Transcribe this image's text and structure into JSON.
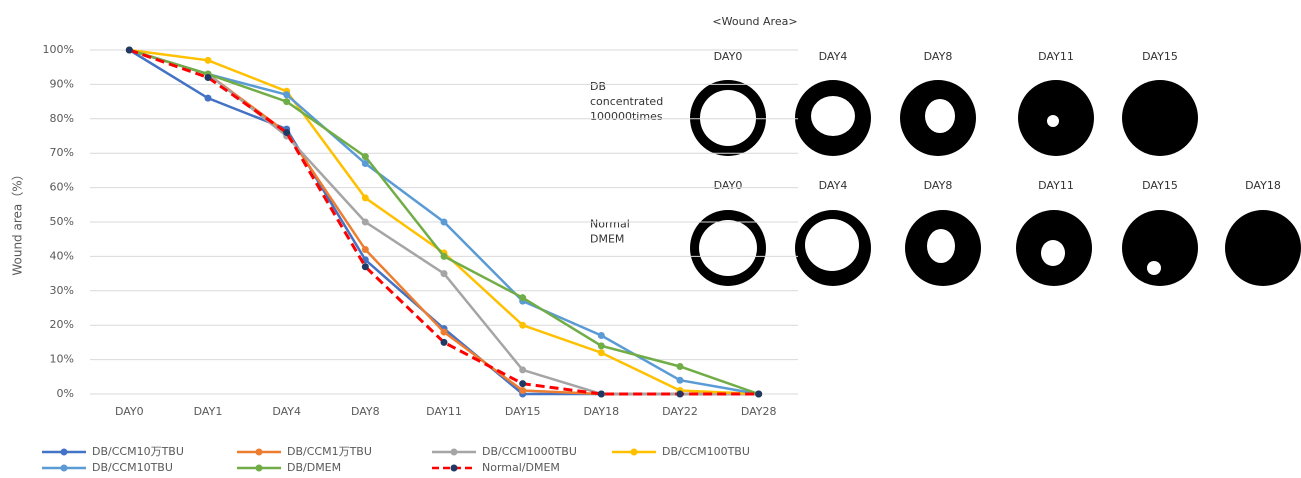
{
  "chart_data": {
    "type": "line",
    "y_label": "Wound area（%）",
    "categories": [
      "DAY0",
      "DAY1",
      "DAY4",
      "DAY8",
      "DAY11",
      "DAY15",
      "DAY18",
      "DAY22",
      "DAY28"
    ],
    "ylim": [
      0,
      100
    ],
    "yticks": [
      {
        "value": 0,
        "label": "0%"
      },
      {
        "value": 10,
        "label": "10%"
      },
      {
        "value": 20,
        "label": "20%"
      },
      {
        "value": 30,
        "label": "30%"
      },
      {
        "value": 40,
        "label": "40%"
      },
      {
        "value": 50,
        "label": "50%"
      },
      {
        "value": 60,
        "label": "60%"
      },
      {
        "value": 70,
        "label": "70%"
      },
      {
        "value": 80,
        "label": "80%"
      },
      {
        "value": 90,
        "label": "90%"
      },
      {
        "value": 100,
        "label": "100%"
      }
    ],
    "grid": true,
    "series": [
      {
        "name": "DB/CCM10万TBU",
        "color": "#4472c4",
        "values": [
          100,
          86,
          77,
          39,
          19,
          0,
          0,
          0,
          0
        ]
      },
      {
        "name": "DB/CCM1万TBU",
        "color": "#ed7d31",
        "values": [
          100,
          93,
          76,
          42,
          18,
          1,
          0,
          0,
          0
        ]
      },
      {
        "name": "DB/CCM1000TBU",
        "color": "#a5a5a5",
        "values": [
          100,
          93,
          75,
          50,
          35,
          7,
          0,
          0,
          0
        ]
      },
      {
        "name": "DB/CCM100TBU",
        "color": "#ffc000",
        "values": [
          100,
          97,
          88,
          57,
          41,
          20,
          12,
          1,
          0
        ]
      },
      {
        "name": "DB/CCM10TBU",
        "color": "#5b9bd5",
        "values": [
          100,
          93,
          87,
          67,
          50,
          27,
          17,
          4,
          0
        ]
      },
      {
        "name": "DB/DMEM",
        "color": "#70ad47",
        "values": [
          100,
          93,
          85,
          69,
          40,
          28,
          14,
          8,
          0
        ]
      },
      {
        "name": "Normal/DMEM",
        "color": "#ff0000",
        "marker_color": "#203864",
        "dash": true,
        "values": [
          100,
          92,
          76,
          37,
          15,
          3,
          0,
          0,
          0
        ]
      }
    ]
  },
  "wound_panel": {
    "title": "<Wound Area>",
    "rows": [
      {
        "label": [
          "DB",
          "concentrated",
          "100000times"
        ],
        "days": [
          "DAY0",
          "DAY4",
          "DAY8",
          "DAY11",
          "DAY15"
        ]
      },
      {
        "label": [
          "Normal",
          "DMEM"
        ],
        "days": [
          "DAY0",
          "DAY4",
          "DAY8",
          "DAY11",
          "DAY15",
          "DAY18"
        ]
      }
    ]
  }
}
